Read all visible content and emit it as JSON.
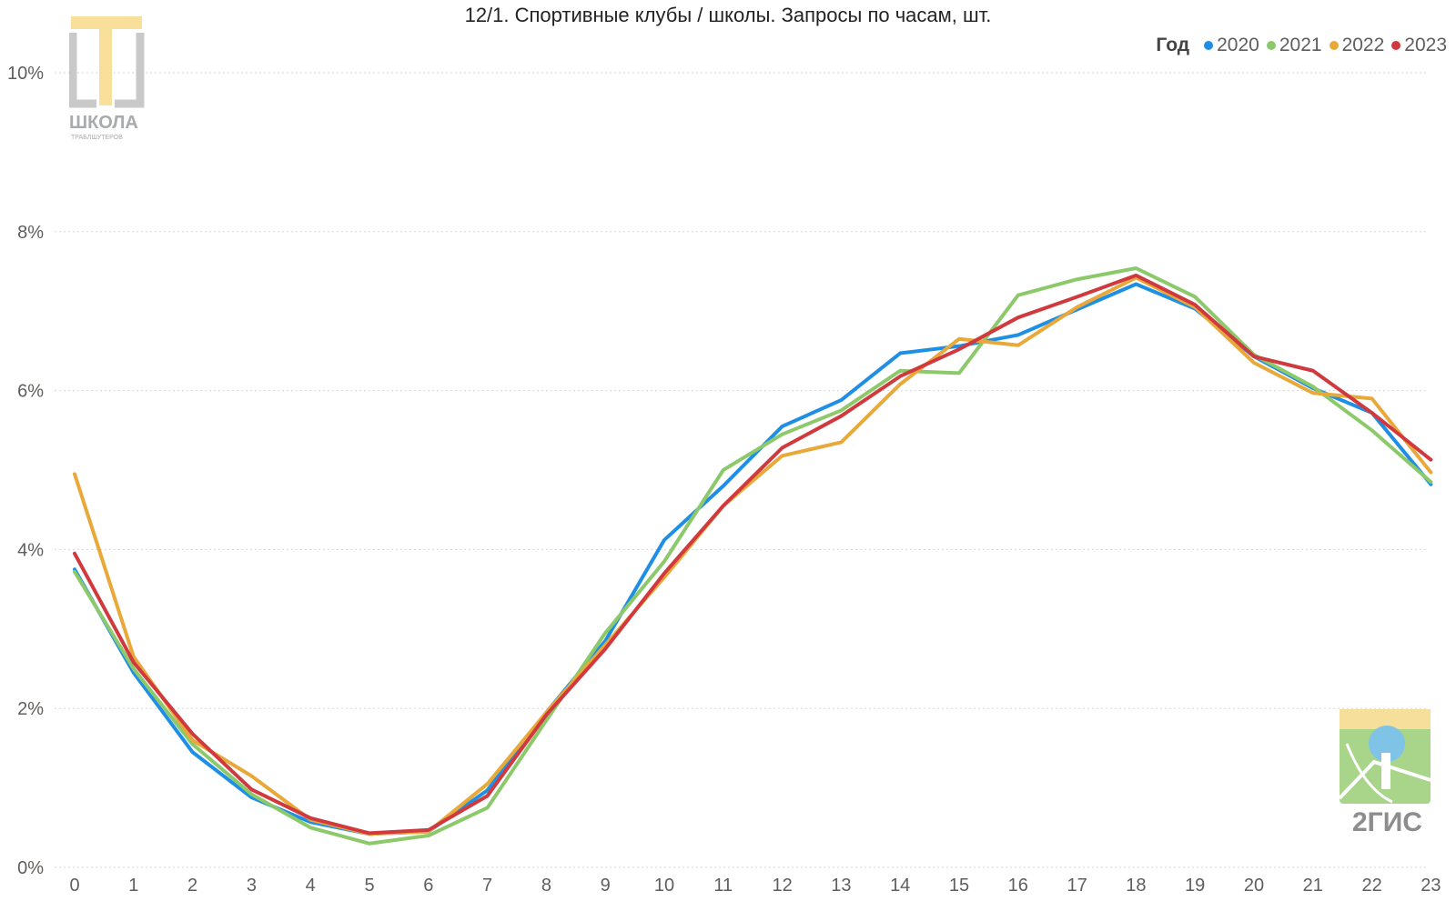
{
  "chart_data": {
    "type": "line",
    "title": "12/1. Спортивные клубы / школы. Запросы по часам, шт.",
    "xlabel": "",
    "ylabel": "",
    "x": [
      0,
      1,
      2,
      3,
      4,
      5,
      6,
      7,
      8,
      9,
      10,
      11,
      12,
      13,
      14,
      15,
      16,
      17,
      18,
      19,
      20,
      21,
      22,
      23
    ],
    "y_ticks": [
      "0%",
      "2%",
      "4%",
      "6%",
      "8%",
      "10%"
    ],
    "ylim": [
      0,
      10
    ],
    "grid": true,
    "legend": {
      "title": "Год",
      "position": "top-right"
    },
    "series": [
      {
        "name": "2020",
        "color": "#1f8fe5",
        "values": [
          3.75,
          2.45,
          1.45,
          0.88,
          0.57,
          0.42,
          0.45,
          0.97,
          1.95,
          2.85,
          4.12,
          4.8,
          5.55,
          5.88,
          6.47,
          6.56,
          6.7,
          7.02,
          7.34,
          7.03,
          6.43,
          6.03,
          5.72,
          4.82
        ]
      },
      {
        "name": "2021",
        "color": "#8cc96a",
        "values": [
          3.72,
          2.5,
          1.55,
          0.92,
          0.5,
          0.3,
          0.4,
          0.75,
          1.85,
          2.95,
          3.85,
          5.0,
          5.45,
          5.75,
          6.25,
          6.22,
          7.2,
          7.4,
          7.54,
          7.18,
          6.45,
          6.05,
          5.5,
          4.85
        ]
      },
      {
        "name": "2022",
        "color": "#e9a93a",
        "values": [
          4.95,
          2.65,
          1.6,
          1.15,
          0.6,
          0.42,
          0.45,
          1.05,
          1.95,
          2.8,
          3.65,
          4.55,
          5.18,
          5.35,
          6.08,
          6.65,
          6.57,
          7.05,
          7.42,
          7.05,
          6.35,
          5.97,
          5.9,
          4.97
        ]
      },
      {
        "name": "2023",
        "color": "#d0393d",
        "values": [
          3.95,
          2.58,
          1.68,
          0.98,
          0.62,
          0.43,
          0.47,
          0.9,
          1.92,
          2.75,
          3.7,
          4.55,
          5.28,
          5.68,
          6.18,
          6.52,
          6.92,
          7.18,
          7.45,
          7.08,
          6.43,
          6.25,
          5.72,
          5.13
        ]
      }
    ]
  },
  "logos": {
    "school": {
      "text": "ШКОЛА",
      "subtext": "ТРАБЛШУТЕРОВ"
    },
    "gis": {
      "text": "2ГИС"
    }
  }
}
